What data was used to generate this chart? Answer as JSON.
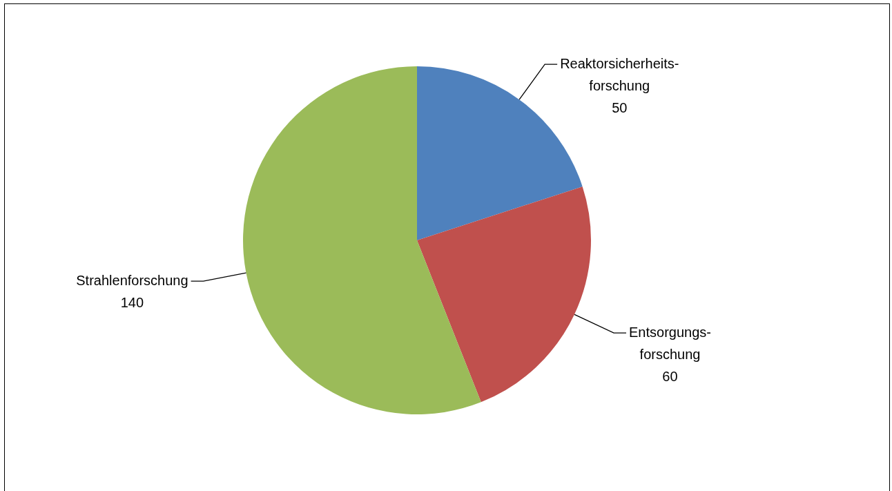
{
  "chart_data": {
    "type": "pie",
    "categories": [
      "Reaktorsicherheits-\nforschung",
      "Entsorgungs-\nforschung",
      "Strahlenforschung"
    ],
    "values": [
      50,
      60,
      140
    ],
    "colors": [
      "#4f81bd",
      "#c0504d",
      "#9bbb59"
    ],
    "data_labels": true,
    "legend": false
  }
}
